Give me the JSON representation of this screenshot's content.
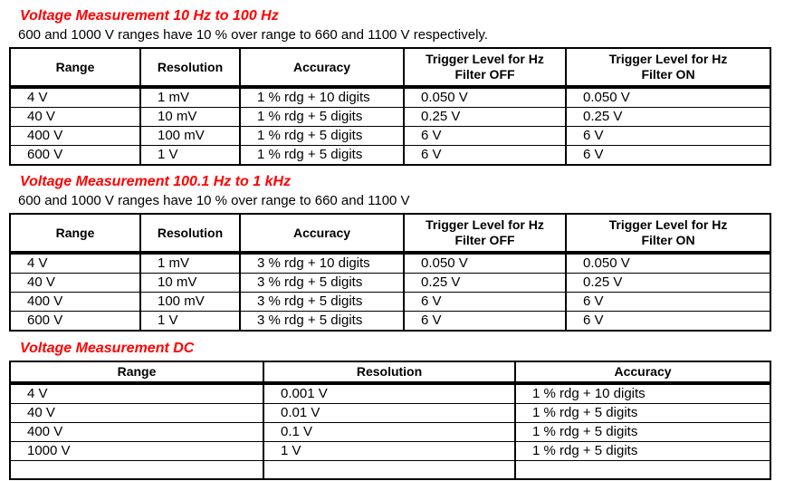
{
  "colors": {
    "heading_red": "#ff0000",
    "text": "#000000",
    "table_border": "#000000",
    "background": "#ffffff"
  },
  "sections": [
    {
      "heading": "Voltage Measurement 10 Hz to 100 Hz",
      "note": "600 and 1000 V ranges have 10 % over range to 660 and 1100 V respectively.",
      "table": {
        "columns": [
          "Range",
          "Resolution",
          "Accuracy",
          "Trigger Level for Hz\nFilter OFF",
          "Trigger Level for Hz\nFilter ON"
        ],
        "rows": [
          [
            "4 V",
            "1 mV",
            "1 % rdg + 10 digits",
            "0.050 V",
            "0.050 V"
          ],
          [
            "40 V",
            "10 mV",
            "1 % rdg + 5 digits",
            "0.25 V",
            "0.25 V"
          ],
          [
            "400 V",
            "100 mV",
            "1 % rdg + 5 digits",
            "6 V",
            "6 V"
          ],
          [
            "600 V",
            "1 V",
            "1 % rdg + 5 digits",
            "6 V",
            "6 V"
          ]
        ],
        "cutoff_row": false
      }
    },
    {
      "heading": "Voltage Measurement 100.1 Hz to 1 kHz",
      "note": "600 and 1000 V ranges have 10 % over range to 660 and 1100 V",
      "table": {
        "columns": [
          "Range",
          "Resolution",
          "Accuracy",
          "Trigger Level for Hz\nFilter OFF",
          "Trigger Level for Hz\nFilter ON"
        ],
        "rows": [
          [
            "4 V",
            "1 mV",
            "3 % rdg + 10 digits",
            "0.050 V",
            "0.050 V"
          ],
          [
            "40 V",
            "10 mV",
            "3 % rdg + 5 digits",
            "0.25 V",
            "0.25 V"
          ],
          [
            "400 V",
            "100 mV",
            "3 % rdg + 5 digits",
            "6 V",
            "6 V"
          ],
          [
            "600 V",
            "1 V",
            "3 % rdg + 5 digits",
            "6 V",
            "6 V"
          ]
        ],
        "cutoff_row": false
      }
    },
    {
      "heading": "Voltage Measurement DC",
      "note": null,
      "table": {
        "columns": [
          "Range",
          "Resolution",
          "Accuracy"
        ],
        "rows": [
          [
            "4 V",
            "0.001 V",
            "1 % rdg + 10 digits"
          ],
          [
            "40 V",
            "0.01 V",
            "1 % rdg + 5 digits"
          ],
          [
            "400 V",
            "0.1 V",
            "1 % rdg + 5 digits"
          ],
          [
            "1000 V",
            "1 V",
            "1 % rdg + 5 digits"
          ]
        ],
        "cutoff_row": true
      }
    }
  ]
}
